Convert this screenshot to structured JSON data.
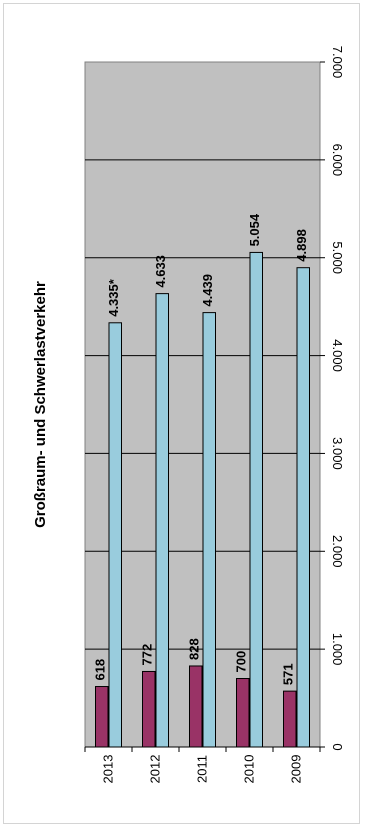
{
  "chart_data": {
    "type": "bar",
    "orientation": "horizontal",
    "rotated": "90deg clockwise",
    "title": "Großraum- und Schwerlastverkehr",
    "categories": [
      "2013",
      "2012",
      "2011",
      "2010",
      "2009"
    ],
    "series": [
      {
        "values": [
          618,
          772,
          828,
          700,
          571
        ],
        "labels": [
          "618",
          "772",
          "828",
          "700",
          "571"
        ],
        "color": "#993366"
      },
      {
        "values": [
          4335,
          4633,
          4439,
          5054,
          4898
        ],
        "labels": [
          "4.335*",
          "4.633",
          "4.439",
          "5.054",
          "4.898"
        ],
        "color": "#99ccdd"
      }
    ],
    "xlim": [
      0,
      7000
    ],
    "ticks": [
      "0",
      "1.000",
      "2.000",
      "3.000",
      "4.000",
      "5.000",
      "6.000",
      "7.000"
    ],
    "grid": true,
    "plot_background": "#c0c0c0"
  }
}
